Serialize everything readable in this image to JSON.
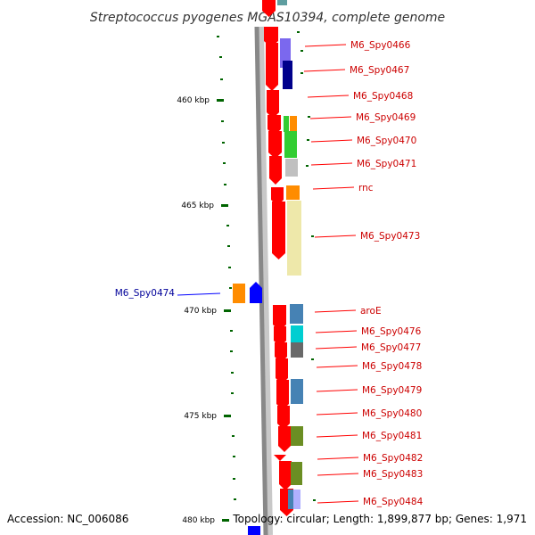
{
  "title": "Streptococcus pyogenes MGAS10394, complete genome",
  "footer": {
    "accession": "Accession: NC_006086",
    "topology": "Topology: circular; Length: 1,899,877 bp; Genes: 1,971"
  },
  "scale_ticks": [
    "460 kbp",
    "465 kbp",
    "470 kbp",
    "475 kbp",
    "480 kbp"
  ],
  "genes_right": [
    {
      "label": "M6_Spy0466",
      "color": "#7b68ee"
    },
    {
      "label": "M6_Spy0467",
      "color": "#00008b"
    },
    {
      "label": "M6_Spy0468",
      "color": "#228b22"
    },
    {
      "label": "M6_Spy0469",
      "color": "#ff8c00"
    },
    {
      "label": "M6_Spy0470",
      "color": "#32cd32"
    },
    {
      "label": "M6_Spy0471",
      "color": "#c0c0c0"
    },
    {
      "label": "rnc",
      "color": "#ff8c00"
    },
    {
      "label": "M6_Spy0473",
      "color": "#eee8aa"
    },
    {
      "label": "aroE",
      "color": "#4682b4"
    },
    {
      "label": "M6_Spy0476",
      "color": "#00ced1"
    },
    {
      "label": "M6_Spy0477",
      "color": "#696969"
    },
    {
      "label": "M6_Spy0478",
      "color": "#ff0000"
    },
    {
      "label": "M6_Spy0479",
      "color": "#4682b4"
    },
    {
      "label": "M6_Spy0480",
      "color": "#228b22"
    },
    {
      "label": "M6_Spy0481",
      "color": "#6b8e23"
    },
    {
      "label": "M6_Spy0482",
      "color": "#ff0000"
    },
    {
      "label": "M6_Spy0483",
      "color": "#6b8e23"
    },
    {
      "label": "M6_Spy0484",
      "color": "#4682b4"
    }
  ],
  "genes_left": [
    {
      "label": "M6_Spy0474",
      "color": "#ff8c00"
    }
  ],
  "colors": {
    "forward_strand": "#ff0000",
    "reverse_strand": "#0000ff",
    "label_forward": "#cc0000",
    "label_reverse": "#000099",
    "tick_green": "#006400"
  }
}
